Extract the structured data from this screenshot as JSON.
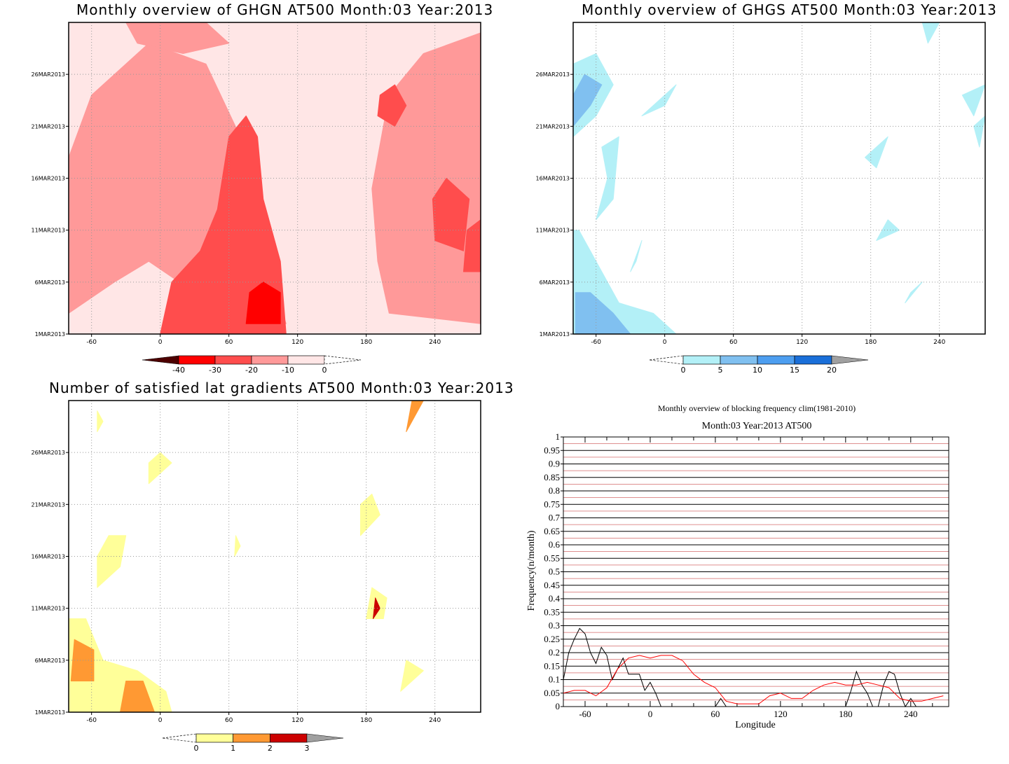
{
  "chart_data": [
    {
      "type": "heatmap",
      "title": "Monthly overview of GHGN AT500 Month:03 Year:2013",
      "x_ticks": [
        "-60",
        "0",
        "60",
        "120",
        "180",
        "240"
      ],
      "x_tick_values": [
        -60,
        0,
        60,
        120,
        180,
        240
      ],
      "xlim": [
        -80,
        280
      ],
      "y_ticks": [
        "1MAR2013",
        "6MAR2013",
        "11MAR2013",
        "16MAR2013",
        "21MAR2013",
        "26MAR2013"
      ],
      "y_tick_values": [
        1,
        6,
        11,
        16,
        21,
        26
      ],
      "ylim": [
        1,
        31
      ],
      "grid": true,
      "colorbar": {
        "labels": [
          "-40",
          "-30",
          "-20",
          "-10",
          "0"
        ],
        "colors": [
          "#4d0000",
          "#ff0000",
          "#ff4d4d",
          "#ff9999",
          "#ffe6e6"
        ]
      },
      "regions": [
        {
          "level": "#ffe6e6",
          "points": [
            [
              -80,
              1
            ],
            [
              280,
              1
            ],
            [
              280,
              31
            ],
            [
              -80,
              31
            ]
          ]
        },
        {
          "level": "#ff9999",
          "points": [
            [
              -80,
              3
            ],
            [
              -40,
              6
            ],
            [
              -10,
              8
            ],
            [
              30,
              5
            ],
            [
              60,
              3
            ],
            [
              110,
              2
            ],
            [
              80,
              12
            ],
            [
              70,
              20
            ],
            [
              40,
              27
            ],
            [
              -10,
              29
            ],
            [
              -60,
              24
            ],
            [
              -80,
              18
            ]
          ]
        },
        {
          "level": "#ff9999",
          "points": [
            [
              200,
              3
            ],
            [
              280,
              2
            ],
            [
              280,
              30
            ],
            [
              230,
              28
            ],
            [
              200,
              24
            ],
            [
              185,
              15
            ],
            [
              190,
              8
            ]
          ]
        },
        {
          "level": "#ff9999",
          "points": [
            [
              -30,
              31
            ],
            [
              40,
              31
            ],
            [
              60,
              29
            ],
            [
              20,
              28
            ],
            [
              -20,
              29
            ]
          ]
        },
        {
          "level": "#ff4d4d",
          "points": [
            [
              0,
              1
            ],
            [
              110,
              1
            ],
            [
              105,
              8
            ],
            [
              90,
              14
            ],
            [
              85,
              20
            ],
            [
              75,
              22
            ],
            [
              60,
              20
            ],
            [
              50,
              13
            ],
            [
              35,
              9
            ],
            [
              10,
              6
            ]
          ]
        },
        {
          "level": "#ff4d4d",
          "points": [
            [
              240,
              10
            ],
            [
              265,
              9
            ],
            [
              270,
              14
            ],
            [
              250,
              16
            ],
            [
              238,
              14
            ]
          ]
        },
        {
          "level": "#ff4d4d",
          "points": [
            [
              190,
              22
            ],
            [
              205,
              21
            ],
            [
              215,
              23
            ],
            [
              205,
              25
            ],
            [
              192,
              24
            ]
          ]
        },
        {
          "level": "#ff4d4d",
          "points": [
            [
              265,
              7
            ],
            [
              280,
              7
            ],
            [
              280,
              12
            ],
            [
              268,
              11
            ]
          ]
        },
        {
          "level": "#ff0000",
          "points": [
            [
              75,
              2
            ],
            [
              105,
              2
            ],
            [
              105,
              5
            ],
            [
              90,
              6
            ],
            [
              78,
              5
            ]
          ]
        }
      ]
    },
    {
      "type": "heatmap",
      "title": "Monthly overview of GHGS AT500 Month:03 Year:2013",
      "x_ticks": [
        "-60",
        "0",
        "60",
        "120",
        "180",
        "240"
      ],
      "x_tick_values": [
        -60,
        0,
        60,
        120,
        180,
        240
      ],
      "xlim": [
        -80,
        280
      ],
      "y_ticks": [
        "1MAR2013",
        "6MAR2013",
        "11MAR2013",
        "16MAR2013",
        "21MAR2013",
        "26MAR2013"
      ],
      "y_tick_values": [
        1,
        6,
        11,
        16,
        21,
        26
      ],
      "ylim": [
        1,
        31
      ],
      "grid": true,
      "colorbar": {
        "labels": [
          "0",
          "5",
          "10",
          "15",
          "20"
        ],
        "colors": [
          "#b3f0f7",
          "#80c0f0",
          "#4d9ef0",
          "#1a6fd9",
          "#a0a0a0"
        ]
      },
      "regions": [
        {
          "level": "#b3f0f7",
          "points": [
            [
              -80,
              1
            ],
            [
              10,
              1
            ],
            [
              -10,
              3
            ],
            [
              -40,
              4
            ],
            [
              -60,
              8
            ],
            [
              -75,
              11
            ],
            [
              -80,
              11
            ]
          ]
        },
        {
          "level": "#80c0f0",
          "points": [
            [
              -78,
              1
            ],
            [
              -30,
              1
            ],
            [
              -45,
              3
            ],
            [
              -65,
              5
            ],
            [
              -78,
              5
            ]
          ]
        },
        {
          "level": "#b3f0f7",
          "points": [
            [
              -80,
              20
            ],
            [
              -60,
              22
            ],
            [
              -45,
              25
            ],
            [
              -60,
              28
            ],
            [
              -80,
              27
            ]
          ]
        },
        {
          "level": "#80c0f0",
          "points": [
            [
              -80,
              21
            ],
            [
              -65,
              23
            ],
            [
              -55,
              25
            ],
            [
              -70,
              26
            ],
            [
              -80,
              24
            ]
          ]
        },
        {
          "level": "#b3f0f7",
          "points": [
            [
              -55,
              19
            ],
            [
              -40,
              20
            ],
            [
              -45,
              14
            ],
            [
              -60,
              12
            ],
            [
              -50,
              16
            ]
          ]
        },
        {
          "level": "#b3f0f7",
          "points": [
            [
              -20,
              22
            ],
            [
              10,
              25
            ],
            [
              0,
              23
            ]
          ]
        },
        {
          "level": "#b3f0f7",
          "points": [
            [
              -30,
              7
            ],
            [
              -20,
              10
            ],
            [
              -25,
              8
            ]
          ]
        },
        {
          "level": "#b3f0f7",
          "points": [
            [
              175,
              18
            ],
            [
              195,
              20
            ],
            [
              185,
              17
            ]
          ]
        },
        {
          "level": "#b3f0f7",
          "points": [
            [
              185,
              10
            ],
            [
              205,
              11
            ],
            [
              195,
              12
            ]
          ]
        },
        {
          "level": "#b3f0f7",
          "points": [
            [
              210,
              4
            ],
            [
              225,
              6
            ],
            [
              215,
              5
            ]
          ]
        },
        {
          "level": "#b3f0f7",
          "points": [
            [
              270,
              22
            ],
            [
              280,
              25
            ],
            [
              260,
              24
            ]
          ]
        },
        {
          "level": "#b3f0f7",
          "points": [
            [
              275,
              19
            ],
            [
              280,
              22
            ],
            [
              270,
              21
            ]
          ]
        },
        {
          "level": "#b3f0f7",
          "points": [
            [
              230,
              29
            ],
            [
              240,
              31
            ],
            [
              225,
              31
            ]
          ]
        }
      ]
    },
    {
      "type": "heatmap",
      "title": "Number of satisfied lat gradients AT500 Month:03 Year:2013",
      "x_ticks": [
        "-60",
        "0",
        "60",
        "120",
        "180",
        "240"
      ],
      "x_tick_values": [
        -60,
        0,
        60,
        120,
        180,
        240
      ],
      "xlim": [
        -80,
        280
      ],
      "y_ticks": [
        "1MAR2013",
        "6MAR2013",
        "11MAR2013",
        "16MAR2013",
        "21MAR2013",
        "26MAR2013"
      ],
      "y_tick_values": [
        1,
        6,
        11,
        16,
        21,
        26
      ],
      "ylim": [
        1,
        31
      ],
      "grid": true,
      "colorbar": {
        "labels": [
          "0",
          "1",
          "2",
          "3"
        ],
        "colors": [
          "#ffff99",
          "#ff9933",
          "#cc0000",
          "#a0a0a0"
        ]
      },
      "regions": [
        {
          "level": "#ffff99",
          "points": [
            [
              -80,
              1
            ],
            [
              10,
              1
            ],
            [
              5,
              3
            ],
            [
              -20,
              5
            ],
            [
              -50,
              6
            ],
            [
              -65,
              10
            ],
            [
              -80,
              10
            ]
          ]
        },
        {
          "level": "#ff9933",
          "points": [
            [
              -35,
              1
            ],
            [
              -5,
              1
            ],
            [
              -15,
              4
            ],
            [
              -30,
              4
            ]
          ]
        },
        {
          "level": "#ff9933",
          "points": [
            [
              -78,
              4
            ],
            [
              -58,
              4
            ],
            [
              -58,
              7
            ],
            [
              -75,
              8
            ]
          ]
        },
        {
          "level": "#ffff99",
          "points": [
            [
              -55,
              13
            ],
            [
              -35,
              15
            ],
            [
              -30,
              18
            ],
            [
              -45,
              18
            ],
            [
              -55,
              16
            ]
          ]
        },
        {
          "level": "#ffff99",
          "points": [
            [
              -10,
              23
            ],
            [
              10,
              25
            ],
            [
              0,
              26
            ],
            [
              -10,
              25
            ]
          ]
        },
        {
          "level": "#ffff99",
          "points": [
            [
              175,
              18
            ],
            [
              192,
              20
            ],
            [
              185,
              22
            ],
            [
              175,
              21
            ]
          ]
        },
        {
          "level": "#ffff99",
          "points": [
            [
              180,
              10
            ],
            [
              195,
              10
            ],
            [
              198,
              12
            ],
            [
              185,
              13
            ]
          ]
        },
        {
          "level": "#cc0000",
          "points": [
            [
              186,
              10
            ],
            [
              192,
              11
            ],
            [
              188,
              12
            ]
          ]
        },
        {
          "level": "#ffff99",
          "points": [
            [
              210,
              3
            ],
            [
              230,
              5
            ],
            [
              215,
              6
            ]
          ]
        },
        {
          "level": "#ff9933",
          "points": [
            [
              215,
              28
            ],
            [
              230,
              31
            ],
            [
              220,
              31
            ]
          ]
        },
        {
          "level": "#ffff99",
          "points": [
            [
              -55,
              28
            ],
            [
              -50,
              29
            ],
            [
              -55,
              30
            ]
          ]
        },
        {
          "level": "#ffff99",
          "points": [
            [
              65,
              16
            ],
            [
              70,
              17
            ],
            [
              66,
              18
            ]
          ]
        }
      ]
    },
    {
      "type": "line",
      "title": "Monthly overview of blocking frequency clim(1981-2010)",
      "subtitle": "Month:03 Year:2013  AT500",
      "xlabel": "Longitude",
      "ylabel": "Frequency(n/month)",
      "xlim": [
        -80,
        275
      ],
      "ylim": [
        0,
        1
      ],
      "x_ticks": [
        "-60",
        "0",
        "60",
        "120",
        "180",
        "240"
      ],
      "x_tick_values": [
        -60,
        0,
        60,
        120,
        180,
        240
      ],
      "y_ticks": [
        "0",
        "0.05",
        "0.1",
        "0.15",
        "0.2",
        "0.25",
        "0.3",
        "0.35",
        "0.4",
        "0.45",
        "0.5",
        "0.55",
        "0.6",
        "0.65",
        "0.7",
        "0.75",
        "0.8",
        "0.85",
        "0.9",
        "0.95",
        "1"
      ],
      "grid": true,
      "series": [
        {
          "color": "#000000",
          "x": [
            -80,
            -75,
            -70,
            -65,
            -60,
            -55,
            -50,
            -45,
            -40,
            -35,
            -30,
            -25,
            -20,
            -15,
            -10,
            -5,
            0,
            5,
            10,
            15,
            20,
            25,
            30,
            35,
            40,
            45,
            50,
            55,
            60,
            65,
            70,
            75,
            80,
            180,
            185,
            190,
            195,
            200,
            205,
            210,
            215,
            220,
            225,
            230,
            235,
            240,
            245,
            250
          ],
          "y": [
            0.1,
            0.2,
            0.25,
            0.29,
            0.27,
            0.2,
            0.16,
            0.22,
            0.19,
            0.1,
            0.14,
            0.18,
            0.12,
            0.12,
            0.12,
            0.06,
            0.09,
            0.05,
            0,
            0,
            0,
            0,
            0,
            0,
            0,
            0,
            0,
            0,
            0,
            0.03,
            0,
            0,
            0,
            0,
            0.06,
            0.13,
            0.08,
            0.05,
            0,
            0,
            0.08,
            0.13,
            0.12,
            0.05,
            0,
            0.03,
            0,
            0
          ]
        },
        {
          "color": "#ff0000",
          "x": [
            -80,
            -70,
            -60,
            -50,
            -40,
            -30,
            -20,
            -10,
            0,
            10,
            20,
            30,
            40,
            50,
            60,
            70,
            80,
            90,
            100,
            110,
            120,
            130,
            140,
            150,
            160,
            170,
            180,
            190,
            200,
            210,
            220,
            230,
            240,
            250,
            260,
            270
          ],
          "y": [
            0.05,
            0.06,
            0.06,
            0.04,
            0.07,
            0.14,
            0.18,
            0.19,
            0.18,
            0.19,
            0.19,
            0.17,
            0.12,
            0.09,
            0.07,
            0.02,
            0.01,
            0.01,
            0.01,
            0.04,
            0.05,
            0.03,
            0.03,
            0.06,
            0.08,
            0.09,
            0.08,
            0.08,
            0.09,
            0.08,
            0.07,
            0.03,
            0.02,
            0.02,
            0.03,
            0.04
          ]
        }
      ]
    }
  ]
}
